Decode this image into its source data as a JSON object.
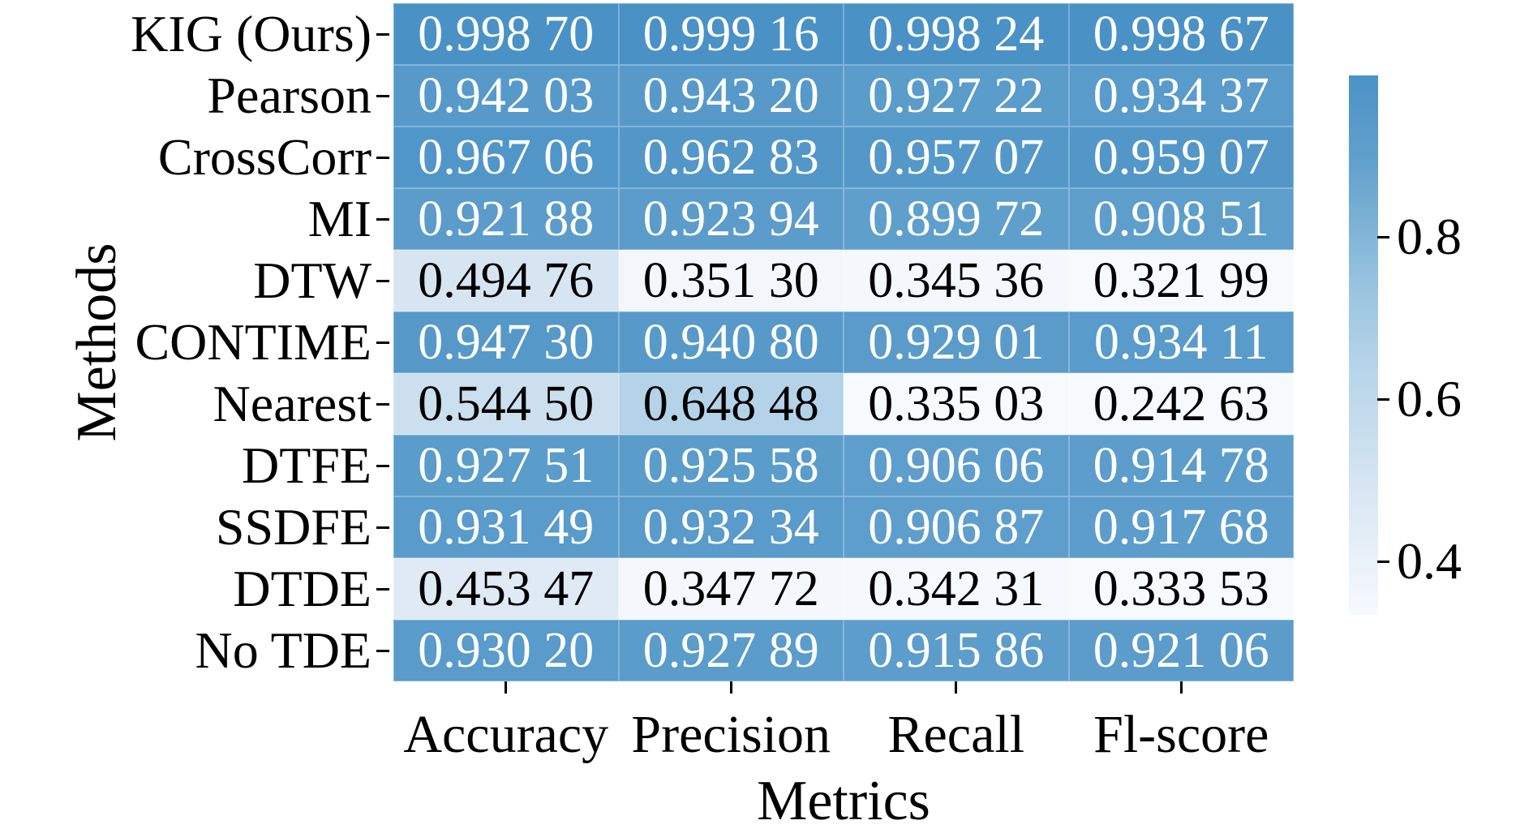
{
  "chart_data": {
    "type": "heatmap",
    "title": "",
    "xlabel": "Metrics",
    "ylabel": "Methods",
    "columns": [
      "Accuracy",
      "Precision",
      "Recall",
      "Fl-score"
    ],
    "rows": [
      "KIG (Ours)",
      "Pearson",
      "CrossCorr",
      "MI",
      "DTW",
      "CONTIME",
      "Nearest",
      "DTFE",
      "SSDFE",
      "DTDE",
      "No TDE"
    ],
    "values": [
      [
        0.9987,
        0.99916,
        0.99824,
        0.99867
      ],
      [
        0.94203,
        0.9432,
        0.92722,
        0.93437
      ],
      [
        0.96706,
        0.96283,
        0.95707,
        0.95907
      ],
      [
        0.92188,
        0.92394,
        0.89972,
        0.90851
      ],
      [
        0.49476,
        0.3513,
        0.34536,
        0.32199
      ],
      [
        0.9473,
        0.9408,
        0.92901,
        0.93411
      ],
      [
        0.5445,
        0.64848,
        0.33503,
        0.24263
      ],
      [
        0.92751,
        0.92558,
        0.90606,
        0.91478
      ],
      [
        0.93149,
        0.93234,
        0.90687,
        0.91768
      ],
      [
        0.45347,
        0.34772,
        0.34231,
        0.33353
      ],
      [
        0.9302,
        0.92789,
        0.91586,
        0.92106
      ]
    ],
    "labels": [
      [
        "0.998 70",
        "0.999 16",
        "0.998 24",
        "0.998 67"
      ],
      [
        "0.942 03",
        "0.943 20",
        "0.927 22",
        "0.934 37"
      ],
      [
        "0.967 06",
        "0.962 83",
        "0.957 07",
        "0.959 07"
      ],
      [
        "0.921 88",
        "0.923 94",
        "0.899 72",
        "0.908 51"
      ],
      [
        "0.494 76",
        "0.351 30",
        "0.345 36",
        "0.321 99"
      ],
      [
        "0.947 30",
        "0.940 80",
        "0.929 01",
        "0.934 11"
      ],
      [
        "0.544 50",
        "0.648 48",
        "0.335 03",
        "0.242 63"
      ],
      [
        "0.927 51",
        "0.925 58",
        "0.906 06",
        "0.914 78"
      ],
      [
        "0.931 49",
        "0.932 34",
        "0.906 87",
        "0.917 68"
      ],
      [
        "0.453 47",
        "0.347 72",
        "0.342 31",
        "0.333 53"
      ],
      [
        "0.930 20",
        "0.927 89",
        "0.915 86",
        "0.921 06"
      ]
    ],
    "grid": false,
    "legend_position": "colorbar-right",
    "colorbar": {
      "vmin": 0.334,
      "vmax": 0.999,
      "ticks": [
        {
          "label": "0.8",
          "value": 0.8
        },
        {
          "label": "0.6",
          "value": 0.6
        },
        {
          "label": "0.4",
          "value": 0.4
        }
      ]
    },
    "colormap": [
      {
        "t": 0.0,
        "color": "#f7fafd"
      },
      {
        "t": 0.05,
        "color": "#eff5fb"
      },
      {
        "t": 0.24,
        "color": "#d7e5f2"
      },
      {
        "t": 0.32,
        "color": "#cadfef"
      },
      {
        "t": 0.47,
        "color": "#b5d3e8"
      },
      {
        "t": 0.62,
        "color": "#96c2de"
      },
      {
        "t": 0.85,
        "color": "#5f9fcc"
      },
      {
        "t": 0.9,
        "color": "#599bca"
      },
      {
        "t": 1.0,
        "color": "#4a92c6"
      }
    ],
    "text_color_dark_cells": "#ffffff",
    "text_color_light_cells": "#000000",
    "text_white_threshold": 0.75
  }
}
